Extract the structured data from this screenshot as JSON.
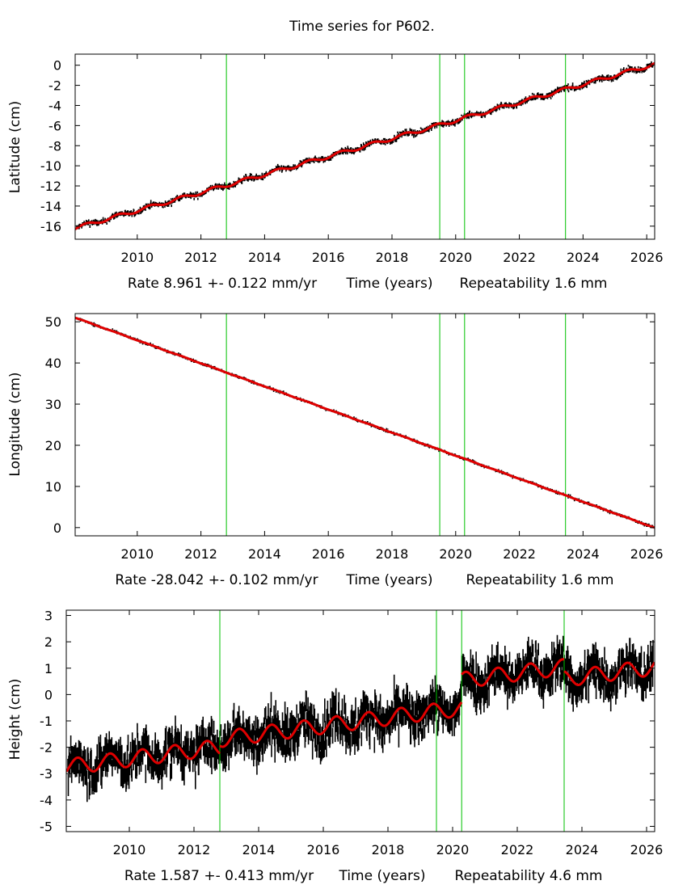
{
  "title": "Time series for P602.",
  "colors": {
    "data": "#000000",
    "model": "#e00000",
    "event": "#00c000"
  },
  "event_lines": [
    2012.8,
    2019.5,
    2020.28,
    2023.45
  ],
  "chart_data": [
    {
      "type": "line",
      "id": "latitude",
      "ylabel": "Latitude (cm)",
      "xlabel": "Time (years)",
      "rate_text": "Rate 8.961 +- 0.122 mm/yr",
      "repeat_text": "Repeatability 1.6 mm",
      "xlim": [
        2008.05,
        2026.25
      ],
      "ylim": [
        -17.3,
        1.1
      ],
      "xticks": [
        "2010",
        "2012",
        "2014",
        "2016",
        "2018",
        "2020",
        "2022",
        "2024",
        "2026"
      ],
      "yticks": [
        "0",
        "-2",
        "-4",
        "-6",
        "-8",
        "-10",
        "-12",
        "-14",
        "-16"
      ],
      "model": {
        "x0": 2008.05,
        "y0": -16.2,
        "rate_cm_per_yr": 0.8961,
        "annual_amp_cm": 0.18,
        "offsets": []
      },
      "scatter_cm": 0.2
    },
    {
      "type": "line",
      "id": "longitude",
      "ylabel": "Longitude (cm)",
      "xlabel": "Time (years)",
      "rate_text": "Rate -28.042 +- 0.102 mm/yr",
      "repeat_text": "Repeatability 1.6 mm",
      "xlim": [
        2008.05,
        2026.25
      ],
      "ylim": [
        -2,
        52
      ],
      "xticks": [
        "2010",
        "2012",
        "2014",
        "2016",
        "2018",
        "2020",
        "2022",
        "2024",
        "2026"
      ],
      "yticks": [
        "50",
        "40",
        "30",
        "20",
        "10",
        "0"
      ],
      "model": {
        "x0": 2008.05,
        "y0": 51.0,
        "rate_cm_per_yr": -2.8042,
        "annual_amp_cm": 0.05,
        "offsets": []
      },
      "scatter_cm": 0.25
    },
    {
      "type": "line",
      "id": "height",
      "ylabel": "Height (cm)",
      "xlabel": "Time (years)",
      "rate_text": "Rate 1.587 +- 0.413 mm/yr",
      "repeat_text": "Repeatability 4.6 mm",
      "xlim": [
        2008.05,
        2026.25
      ],
      "ylim": [
        -5.2,
        3.2
      ],
      "xticks": [
        "2010",
        "2012",
        "2014",
        "2016",
        "2018",
        "2020",
        "2022",
        "2024",
        "2026"
      ],
      "yticks": [
        "3",
        "2",
        "1",
        "0",
        "-1",
        "-2",
        "-3",
        "-4",
        "-5"
      ],
      "model": {
        "x0": 2008.05,
        "y0": -2.75,
        "rate_cm_per_yr": 0.1587,
        "annual_amp_cm": 0.3,
        "offsets": [
          {
            "t": 2012.8,
            "dy": 0.3
          },
          {
            "t": 2020.28,
            "dy": 1.05
          },
          {
            "t": 2023.45,
            "dy": -0.45
          }
        ]
      },
      "scatter_cm": 0.55
    }
  ]
}
